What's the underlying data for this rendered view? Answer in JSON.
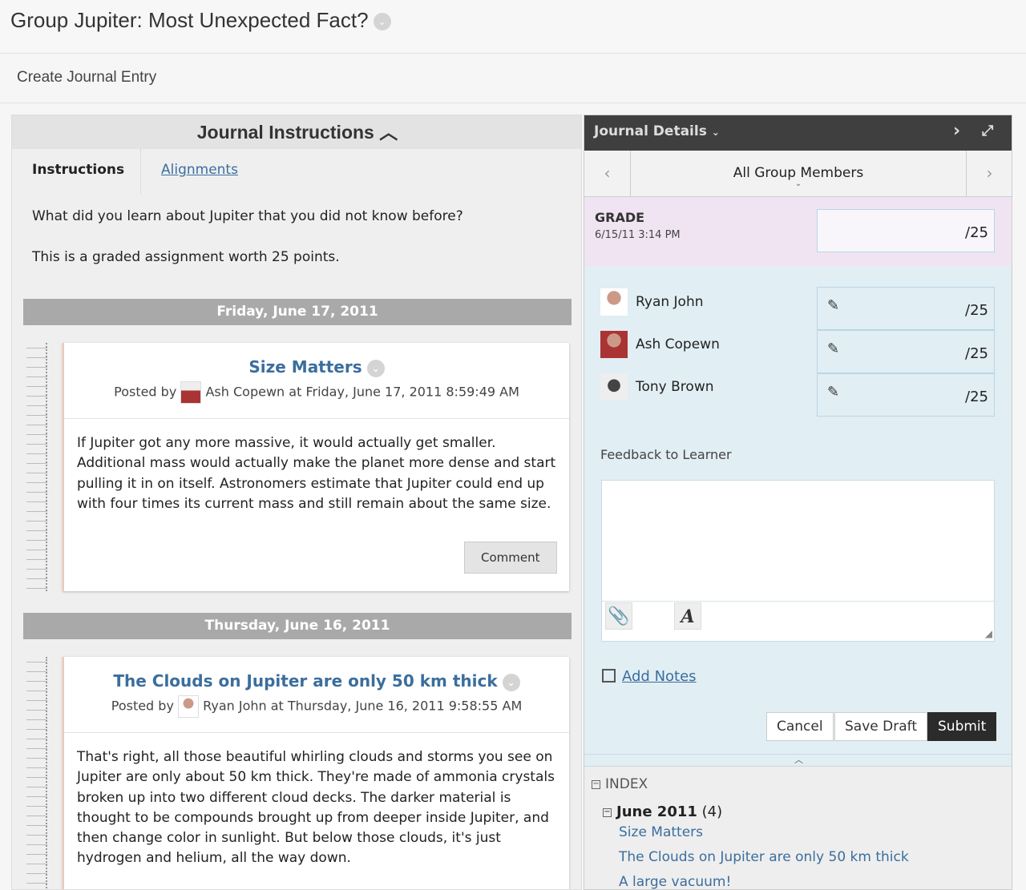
{
  "page": {
    "title": "Group Jupiter: Most Unexpected Fact?",
    "subtitle": "Create Journal Entry"
  },
  "instructions": {
    "heading": "Journal Instructions",
    "tabs": [
      "Instructions",
      "Alignments"
    ],
    "lines": [
      "What did you learn about Jupiter that you did not know before?",
      "This is a graded assignment worth 25 points."
    ]
  },
  "entries": [
    {
      "date": "Friday, June 17, 2011",
      "title": "Size Matters",
      "posted_by": "Posted by",
      "author": "Ash Copewn",
      "timestamp": "at Friday, June 17, 2011 8:59:49 AM",
      "body": "If Jupiter got any more massive, it would actually get smaller. Additional mass would actually make the planet more dense and start pulling it in on itself. Astronomers estimate that Jupiter could end up with four times its current mass and still remain about the same size.",
      "comment_label": "Comment"
    },
    {
      "date": "Thursday, June 16, 2011",
      "title": "The Clouds on Jupiter are only 50 km thick",
      "posted_by": "Posted by",
      "author": "Ryan John",
      "timestamp": "at Thursday, June 16, 2011 9:58:55 AM",
      "body": "That's right, all those beautiful whirling clouds and storms you see on Jupiter are only about 50 km thick. They're made of ammonia crystals broken up into two different cloud decks. The darker material is thought to be compounds brought up from deeper inside Jupiter, and then change color in sunlight. But below those clouds, it's just hydrogen and helium, all the way down."
    }
  ],
  "details": {
    "heading": "Journal Details",
    "selector": "All Group Members",
    "grade_label": "GRADE",
    "grade_date": "6/15/11 3:14 PM",
    "grade_max": "/25",
    "members": [
      {
        "name": "Ryan John",
        "grade_max": "/25"
      },
      {
        "name": "Ash Copewn",
        "grade_max": "/25"
      },
      {
        "name": "Tony Brown",
        "grade_max": "/25"
      }
    ],
    "feedback_label": "Feedback to Learner",
    "add_notes": "Add Notes",
    "cancel": "Cancel",
    "save_draft": "Save Draft",
    "submit": "Submit"
  },
  "index": {
    "label": "INDEX",
    "month": "June 2011",
    "count": "(4)",
    "items": [
      "Size Matters",
      "The Clouds on Jupiter are only 50 km thick",
      "A large vacuum!"
    ]
  },
  "colors": {
    "link": "#3b6e9d",
    "header_dark": "#3f3f3f",
    "grade_bg": "#f0e4f2",
    "panel_bg": "#e1eef4"
  }
}
